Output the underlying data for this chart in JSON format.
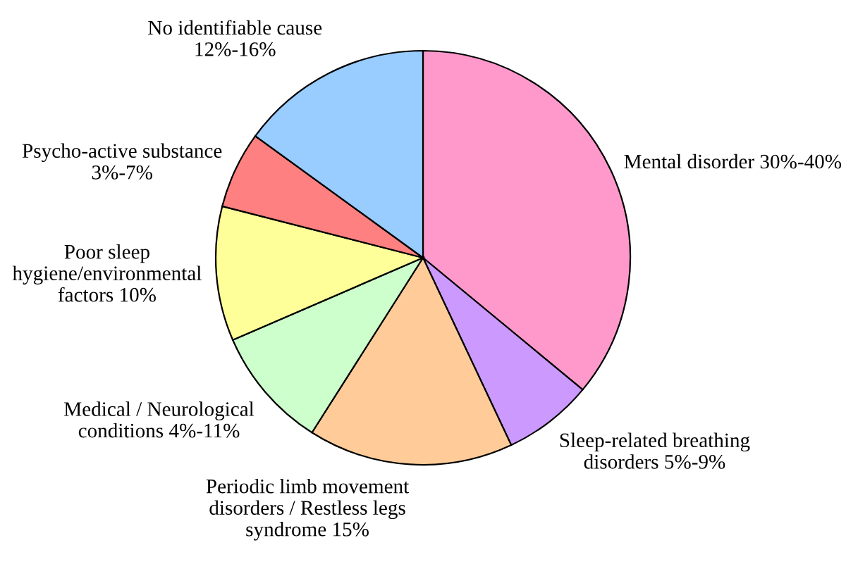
{
  "chart_data": {
    "type": "pie",
    "categories": [
      "Mental disorder 30%-40%",
      "Sleep-related breathing\ndisorders 5%-9%",
      "Periodic limb movement\ndisorders / Restless legs\nsyndrome 15%",
      "Medical / Neurological\nconditions 4%-11%",
      "Poor sleep\nhygiene/environmental\nfactors 10%",
      "Psycho-active substance\n3%-7%",
      "No identifiable cause\n12%-16%"
    ],
    "values": [
      36,
      7,
      16,
      9.5,
      10.5,
      6,
      15
    ],
    "colors": [
      "#ff99cc",
      "#cc99ff",
      "#ffcc99",
      "#ccffcc",
      "#ffff99",
      "#ff8080",
      "#99ccff"
    ]
  }
}
